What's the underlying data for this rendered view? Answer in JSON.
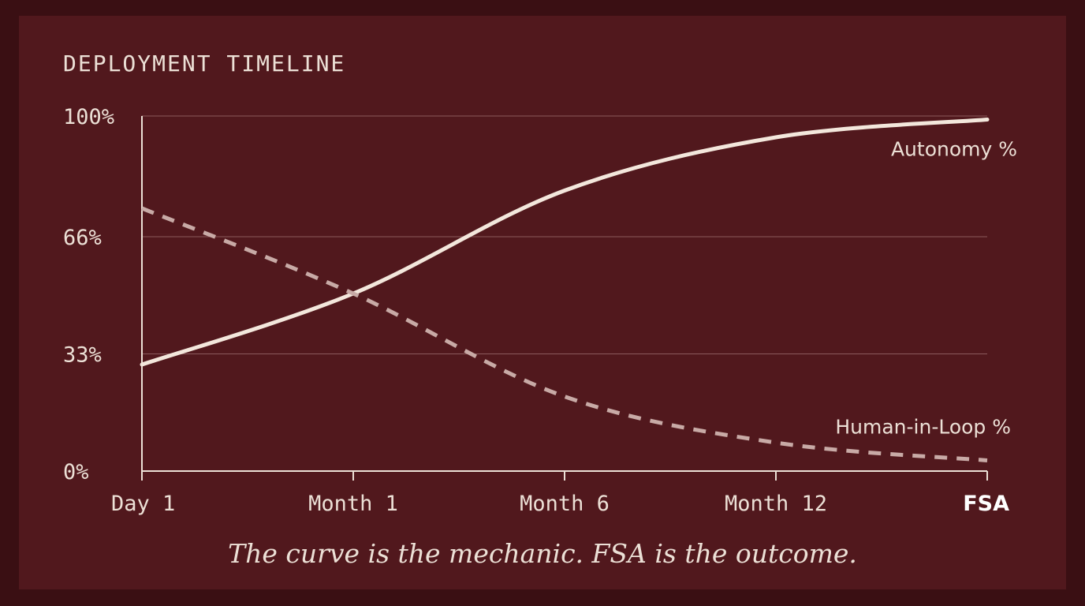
{
  "chart_data": {
    "type": "line",
    "title": "DEPLOYMENT TIMELINE",
    "x_ticks": [
      "Day 1",
      "Month 1",
      "Month 6",
      "Month 12",
      "FSA"
    ],
    "y_ticks": [
      "0%",
      "33%",
      "66%",
      "100%"
    ],
    "y_tick_values": [
      0,
      33,
      66,
      100
    ],
    "ylim": [
      0,
      100
    ],
    "grid": true,
    "series": [
      {
        "name": "Autonomy %",
        "style": "solid",
        "color": "#f3e7dc",
        "values": [
          30,
          50,
          79,
          94,
          99
        ]
      },
      {
        "name": "Human-in-Loop %",
        "style": "dashed",
        "color": "#c8aaa6",
        "values": [
          74,
          50,
          21,
          8,
          3
        ]
      }
    ],
    "caption": "The curve is the mechanic. FSA is the outcome."
  },
  "colors": {
    "background": "#3a0f13",
    "panel": "#51181d",
    "text": "#ece0d6",
    "grid": "#8a5a5c"
  }
}
